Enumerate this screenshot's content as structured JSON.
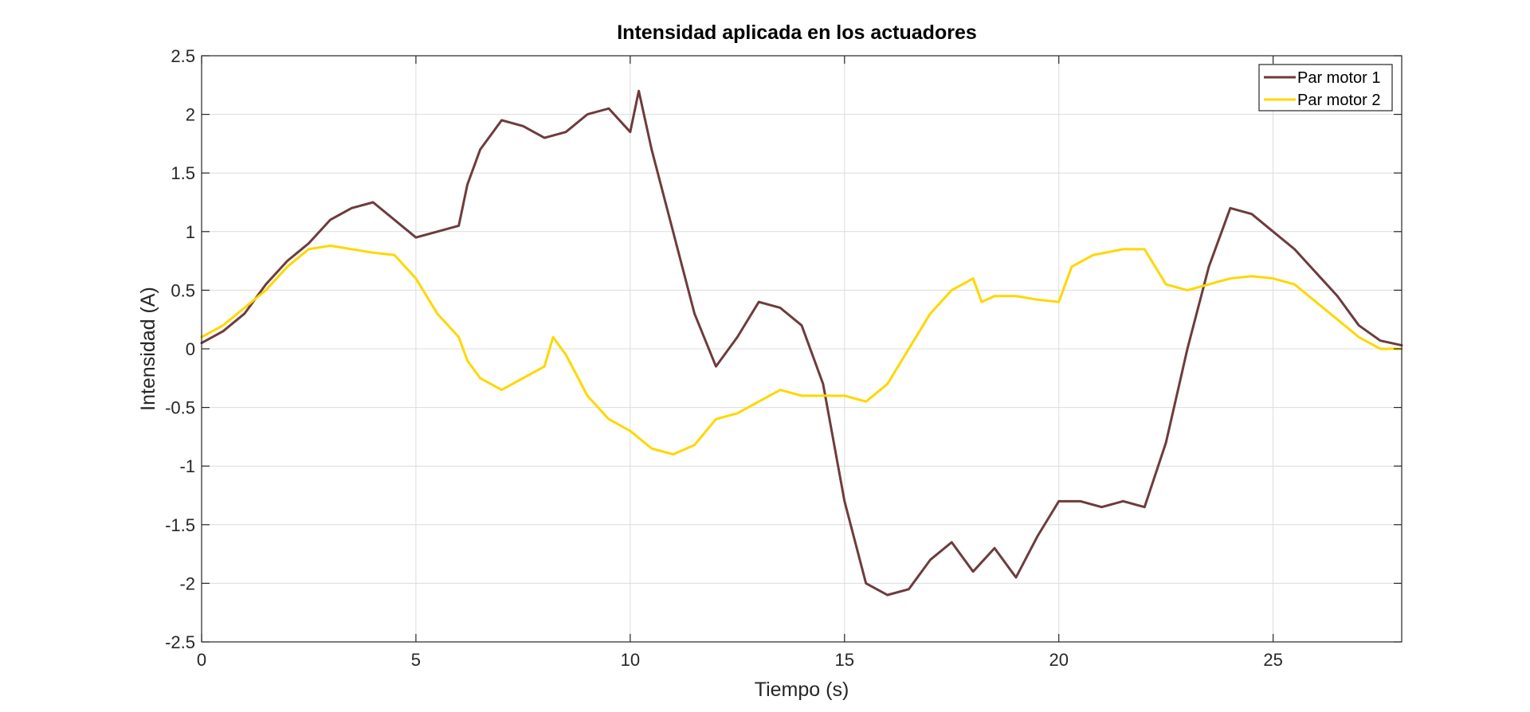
{
  "chart_data": {
    "type": "line",
    "title": "Intensidad aplicada en los actuadores",
    "xlabel": "Tiempo (s)",
    "ylabel": "Intensidad (A)",
    "xlim": [
      0,
      28
    ],
    "ylim": [
      -2.5,
      2.5
    ],
    "xticks": [
      0,
      5,
      10,
      15,
      20,
      25
    ],
    "xtick_labels": [
      "0",
      "5",
      "10",
      "15",
      "20",
      "25"
    ],
    "yticks": [
      -2.5,
      -2,
      -1.5,
      -1,
      -0.5,
      0,
      0.5,
      1,
      1.5,
      2,
      2.5
    ],
    "ytick_labels": [
      "-2.5",
      "-2",
      "-1.5",
      "-1",
      "-0.5",
      "0",
      "0.5",
      "1",
      "1.5",
      "2",
      "2.5"
    ],
    "grid": true,
    "legend_position": "top-right",
    "series": [
      {
        "name": "Par motor 1",
        "color": "#6e3b3b",
        "x": [
          0,
          0.5,
          1,
          1.5,
          2,
          2.5,
          3,
          3.5,
          4,
          4.5,
          5,
          5.5,
          6,
          6.2,
          6.5,
          7,
          7.5,
          8,
          8.5,
          9,
          9.5,
          10,
          10.2,
          10.5,
          11,
          11.5,
          12,
          12.5,
          13,
          13.5,
          14,
          14.5,
          15,
          15.5,
          16,
          16.5,
          17,
          17.5,
          18,
          18.5,
          19,
          19.5,
          20,
          20.5,
          21,
          21.5,
          22,
          22.5,
          23,
          23.5,
          24,
          24.5,
          25,
          25.5,
          26,
          26.5,
          27,
          27.5,
          28
        ],
        "y": [
          0.05,
          0.15,
          0.3,
          0.55,
          0.75,
          0.9,
          1.1,
          1.2,
          1.25,
          1.1,
          0.95,
          1.0,
          1.05,
          1.4,
          1.7,
          1.95,
          1.9,
          1.8,
          1.85,
          2.0,
          2.05,
          1.85,
          2.2,
          1.7,
          1.0,
          0.3,
          -0.15,
          0.1,
          0.4,
          0.35,
          0.2,
          -0.3,
          -1.3,
          -2.0,
          -2.1,
          -2.05,
          -1.8,
          -1.65,
          -1.9,
          -1.7,
          -1.95,
          -1.6,
          -1.3,
          -1.3,
          -1.35,
          -1.3,
          -1.35,
          -0.8,
          0.0,
          0.7,
          1.2,
          1.15,
          1.0,
          0.85,
          0.65,
          0.45,
          0.2,
          0.07,
          0.03
        ]
      },
      {
        "name": "Par motor 2",
        "color": "#ffd700",
        "x": [
          0,
          0.5,
          1,
          1.5,
          2,
          2.5,
          3,
          3.5,
          4,
          4.5,
          5,
          5.5,
          6,
          6.2,
          6.5,
          7,
          7.5,
          8,
          8.2,
          8.5,
          9,
          9.5,
          10,
          10.5,
          11,
          11.5,
          12,
          12.5,
          13,
          13.5,
          14,
          14.5,
          15,
          15.5,
          16,
          16.5,
          17,
          17.5,
          18,
          18.2,
          18.5,
          19,
          19.5,
          20,
          20.3,
          20.8,
          21.5,
          22,
          22.5,
          23,
          23.5,
          24,
          24.5,
          25,
          25.5,
          26,
          26.5,
          27,
          27.5,
          28
        ],
        "y": [
          0.1,
          0.2,
          0.35,
          0.5,
          0.7,
          0.85,
          0.88,
          0.85,
          0.82,
          0.8,
          0.6,
          0.3,
          0.1,
          -0.1,
          -0.25,
          -0.35,
          -0.25,
          -0.15,
          0.1,
          -0.05,
          -0.4,
          -0.6,
          -0.7,
          -0.85,
          -0.9,
          -0.82,
          -0.6,
          -0.55,
          -0.45,
          -0.35,
          -0.4,
          -0.4,
          -0.4,
          -0.45,
          -0.3,
          0.0,
          0.3,
          0.5,
          0.6,
          0.4,
          0.45,
          0.45,
          0.42,
          0.4,
          0.7,
          0.8,
          0.85,
          0.85,
          0.55,
          0.5,
          0.55,
          0.6,
          0.62,
          0.6,
          0.55,
          0.4,
          0.25,
          0.1,
          0.0,
          0.0
        ]
      }
    ]
  }
}
